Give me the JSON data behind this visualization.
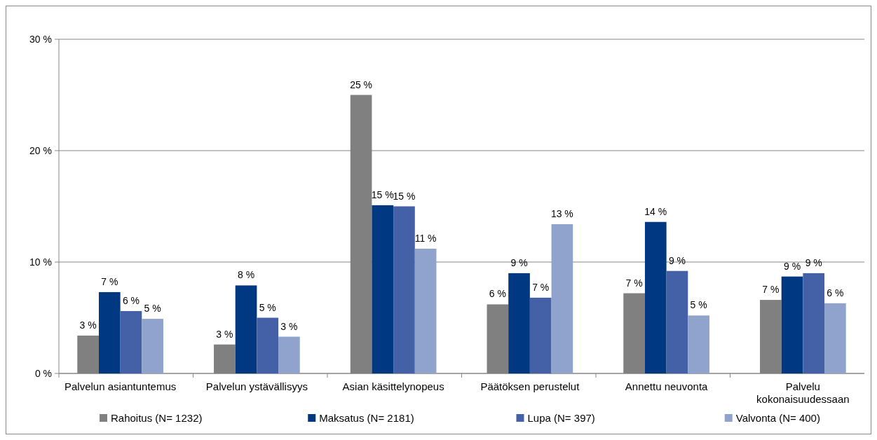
{
  "chart_data": {
    "type": "bar",
    "categories": [
      "Palvelun asiantuntemus",
      "Palvelun ystävällisyys",
      "Asian käsittelynopeus",
      "Päätöksen perustelut",
      "Annettu neuvonta",
      "Palvelu kokonaisuudessaan"
    ],
    "series": [
      {
        "name": "Rahoitus (N= 1232)",
        "color": "#808080",
        "values": [
          3.4,
          2.6,
          25.0,
          6.2,
          7.2,
          6.6
        ],
        "value_labels": [
          "3 %",
          "3 %",
          "25 %",
          "6 %",
          "7 %",
          "7 %"
        ]
      },
      {
        "name": "Maksatus (N= 2181)",
        "color": "#003882",
        "values": [
          7.3,
          7.9,
          15.1,
          9.0,
          13.6,
          8.7
        ],
        "value_labels": [
          "7 %",
          "8 %",
          "15 %",
          "9 %",
          "14 %",
          "9 %"
        ]
      },
      {
        "name": "Lupa (N= 397)",
        "color": "#4461a7",
        "values": [
          5.6,
          5.0,
          15.0,
          6.8,
          9.2,
          9.0
        ],
        "value_labels": [
          "6 %",
          "5 %",
          "15 %",
          "7 %",
          "9 %",
          "9 %"
        ]
      },
      {
        "name": "Valvonta (N= 400)",
        "color": "#8fa3cc",
        "values": [
          4.9,
          3.3,
          11.2,
          13.4,
          5.2,
          6.3
        ],
        "value_labels": [
          "5 %",
          "3 %",
          "11 %",
          "13 %",
          "5 %",
          "6 %"
        ]
      }
    ],
    "ylim": [
      0,
      30
    ],
    "yticks": [
      {
        "value": 0,
        "label": "0 %"
      },
      {
        "value": 10,
        "label": "10 %"
      },
      {
        "value": 20,
        "label": "20 %"
      },
      {
        "value": 30,
        "label": "30 %"
      }
    ],
    "grid": "y",
    "legend": "bottom"
  }
}
